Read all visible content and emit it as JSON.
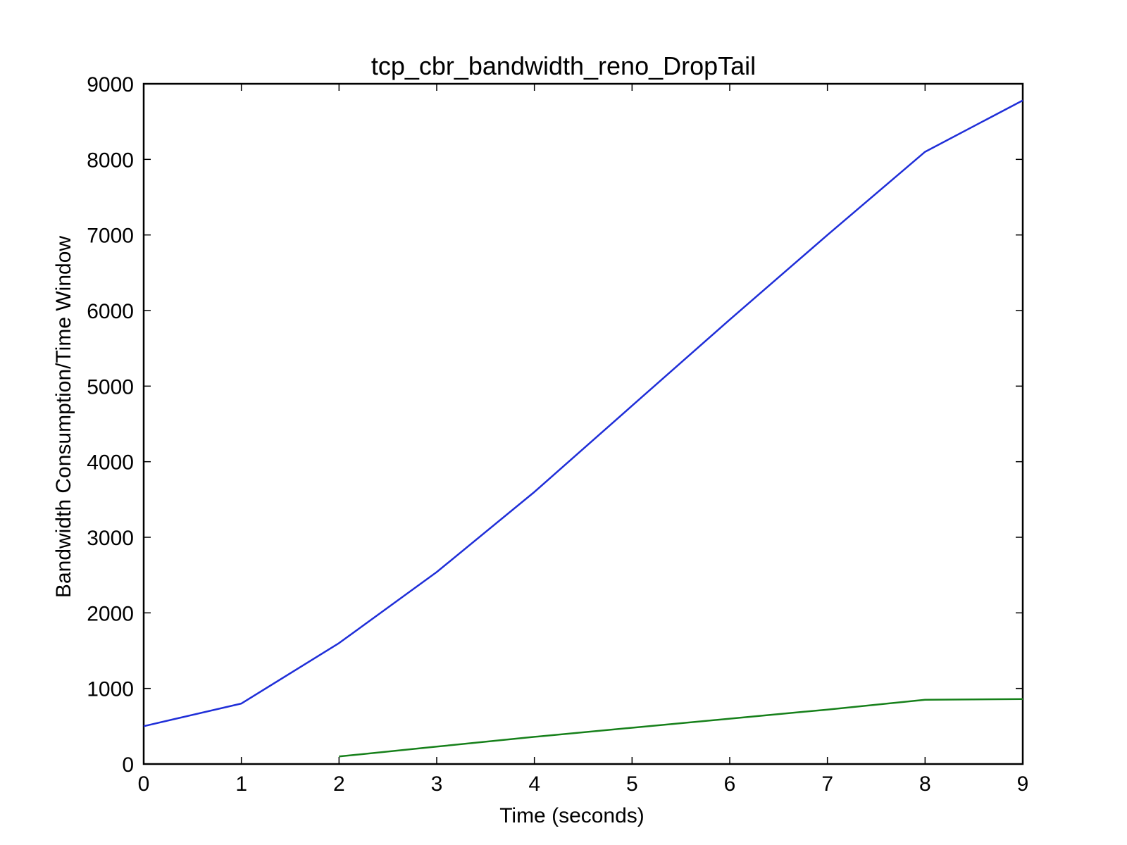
{
  "chart_data": {
    "type": "line",
    "title": "tcp_cbr_bandwidth_reno_DropTail",
    "xlabel": "Time (seconds)",
    "ylabel": "Bandwidth Consumption/Time Window",
    "xlim": [
      0,
      9
    ],
    "ylim": [
      0,
      9000
    ],
    "xticks": [
      "0",
      "1",
      "2",
      "3",
      "4",
      "5",
      "6",
      "7",
      "8",
      "9"
    ],
    "yticks": [
      "0",
      "1000",
      "2000",
      "3000",
      "4000",
      "5000",
      "6000",
      "7000",
      "8000",
      "9000"
    ],
    "grid": false,
    "series": [
      {
        "color": "#1f2ed8",
        "x": [
          0,
          1,
          2,
          3,
          4,
          5,
          6,
          7,
          8,
          9
        ],
        "y": [
          500,
          800,
          1600,
          2540,
          3600,
          4740,
          5880,
          7000,
          8100,
          8780
        ]
      },
      {
        "color": "#16801a",
        "x": [
          2,
          3,
          4,
          5,
          6,
          7,
          8,
          9
        ],
        "y": [
          100,
          230,
          360,
          480,
          600,
          720,
          850,
          860
        ]
      }
    ]
  }
}
